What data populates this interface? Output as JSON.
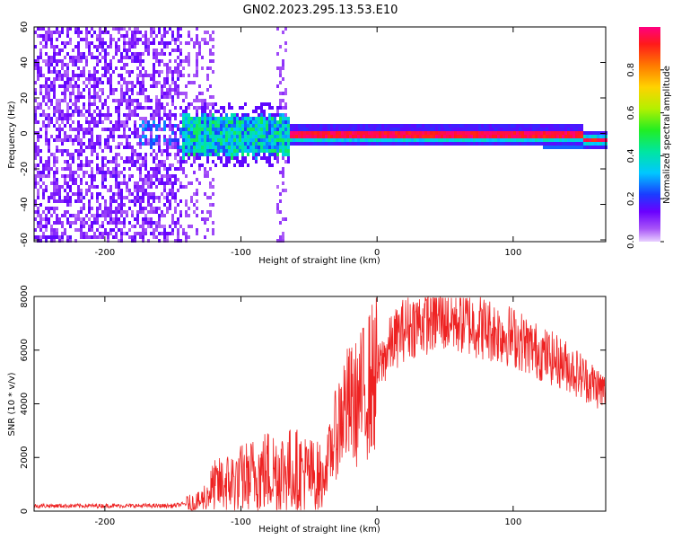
{
  "title": "GN02.2023.295.13.53.E10",
  "colors": {
    "axis": "#000000",
    "snr_line": "#ee2222",
    "spectrogram_low": "#8a2be2",
    "spectrogram_high": "#ff0000"
  },
  "chart_data": [
    {
      "type": "heatmap",
      "name": "spectrogram",
      "xlabel": "Height of straight line (km)",
      "ylabel": "Frequency (Hz)",
      "xlim": [
        -252,
        168
      ],
      "ylim": [
        -61,
        60
      ],
      "xticks": [
        -200,
        -100,
        0,
        100
      ],
      "yticks": [
        60,
        40,
        20,
        0,
        -20,
        -40,
        -60
      ],
      "colorbar": {
        "label": "Normalized spectral amplitude",
        "range": [
          0.0,
          1.0
        ],
        "ticks": [
          0.0,
          0.2,
          0.4,
          0.6,
          0.8
        ],
        "colormap": "rainbow (purple to magenta)"
      },
      "features": [
        {
          "x_range": [
            -252,
            -145
          ],
          "description_level": 0.1,
          "freq_spread": [
            -61,
            60
          ]
        },
        {
          "x_range": [
            -145,
            -65
          ],
          "description_level": 0.35,
          "freq_spread": [
            -10,
            10
          ]
        },
        {
          "x_range": [
            -65,
            168
          ],
          "description_level": 0.9,
          "freq_spread": [
            -3,
            3
          ]
        }
      ]
    },
    {
      "type": "line",
      "name": "snr",
      "xlabel": "Height of straight line (km)",
      "ylabel": "SNR (10 * v/v)",
      "xlim": [
        -252,
        168
      ],
      "ylim": [
        0,
        8000
      ],
      "xticks": [
        -200,
        -100,
        0,
        100
      ],
      "yticks": [
        0,
        2000,
        4000,
        6000,
        8000
      ],
      "envelope": {
        "x": [
          -252,
          -200,
          -150,
          -130,
          -120,
          -100,
          -80,
          -60,
          -40,
          -25,
          -15,
          0,
          10,
          20,
          30,
          45,
          60,
          80,
          100,
          120,
          140,
          160,
          168
        ],
        "y": [
          200,
          200,
          200,
          350,
          900,
          1200,
          1500,
          1500,
          1200,
          3800,
          4000,
          5200,
          6200,
          6800,
          7000,
          7200,
          7100,
          6800,
          6500,
          5900,
          5400,
          4700,
          4400
        ]
      }
    }
  ]
}
